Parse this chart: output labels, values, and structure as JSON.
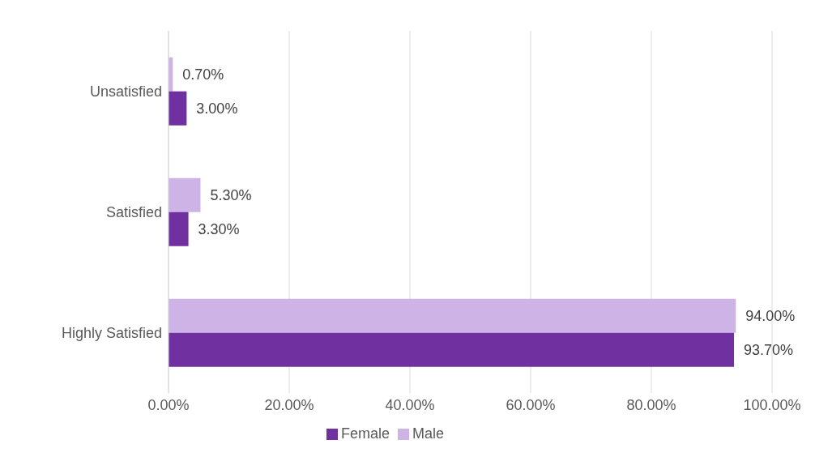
{
  "chart_data": {
    "type": "bar",
    "orientation": "horizontal",
    "categories": [
      "Unsatisfied",
      "Satisfied",
      "Highly Satisfied"
    ],
    "series": [
      {
        "name": "Male",
        "color": "#cdb3e6",
        "values": [
          0.7,
          5.3,
          94.0
        ],
        "value_labels": [
          "0.70%",
          "5.30%",
          "94.00%"
        ]
      },
      {
        "name": "Female",
        "color": "#7030a0",
        "values": [
          3.0,
          3.3,
          93.7
        ],
        "value_labels": [
          "3.00%",
          "3.30%",
          "93.70%"
        ]
      }
    ],
    "xlim": [
      0,
      100
    ],
    "xticks": [
      {
        "value": 0,
        "label": "0.00%"
      },
      {
        "value": 20,
        "label": "20.00%"
      },
      {
        "value": 40,
        "label": "40.00%"
      },
      {
        "value": 60,
        "label": "60.00%"
      },
      {
        "value": 80,
        "label": "80.00%"
      },
      {
        "value": 100,
        "label": "100.00%"
      }
    ],
    "grid": "x",
    "legend": "bottom"
  }
}
